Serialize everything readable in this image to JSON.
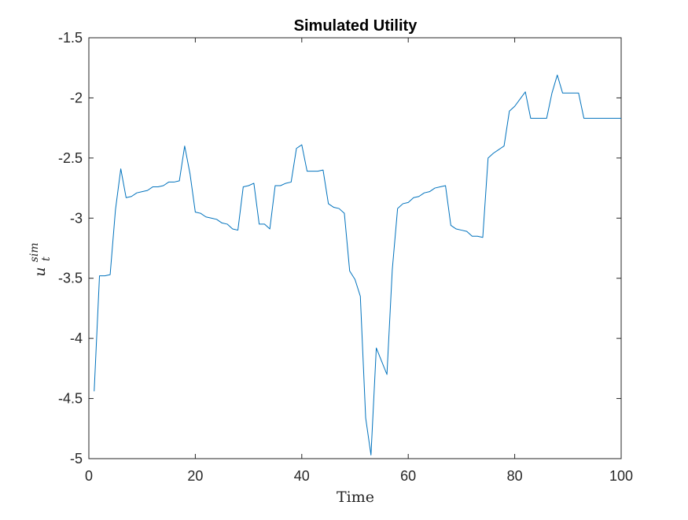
{
  "chart_data": {
    "type": "line",
    "title": "Simulated Utility",
    "xlabel": "Time",
    "ylabel": {
      "base": "u",
      "superscript": "sim",
      "subscript": "t"
    },
    "xlim": [
      0,
      100
    ],
    "ylim": [
      -5,
      -1.5
    ],
    "xticks": [
      0,
      20,
      40,
      60,
      80,
      100
    ],
    "yticks": [
      -1.5,
      -2,
      -2.5,
      -3,
      -3.5,
      -4,
      -4.5,
      -5
    ],
    "xtick_labels": [
      "0",
      "20",
      "40",
      "60",
      "80",
      "100"
    ],
    "ytick_labels": [
      "-1.5",
      "-2",
      "-2.5",
      "-3",
      "-3.5",
      "-4",
      "-4.5",
      "-5"
    ],
    "grid": false,
    "line_color": "#0072BD",
    "x": [
      1,
      2,
      3,
      4,
      5,
      6,
      7,
      8,
      9,
      10,
      11,
      12,
      13,
      14,
      15,
      16,
      17,
      18,
      19,
      20,
      21,
      22,
      23,
      24,
      25,
      26,
      27,
      28,
      29,
      30,
      31,
      32,
      33,
      34,
      35,
      36,
      37,
      38,
      39,
      40,
      41,
      42,
      43,
      44,
      45,
      46,
      47,
      48,
      49,
      50,
      51,
      52,
      53,
      54,
      55,
      56,
      57,
      58,
      59,
      60,
      61,
      62,
      63,
      64,
      65,
      66,
      67,
      68,
      69,
      70,
      71,
      72,
      73,
      74,
      75,
      76,
      77,
      78,
      79,
      80,
      81,
      82,
      83,
      84,
      85,
      86,
      87,
      88,
      89,
      90,
      91,
      92,
      93,
      94,
      95,
      96,
      97,
      98,
      99,
      100
    ],
    "y": [
      -4.44,
      -3.48,
      -3.48,
      -3.47,
      -2.93,
      -2.59,
      -2.83,
      -2.82,
      -2.79,
      -2.78,
      -2.77,
      -2.74,
      -2.74,
      -2.73,
      -2.7,
      -2.7,
      -2.69,
      -2.4,
      -2.63,
      -2.95,
      -2.96,
      -2.99,
      -3.0,
      -3.01,
      -3.04,
      -3.05,
      -3.09,
      -3.1,
      -2.74,
      -2.73,
      -2.71,
      -3.05,
      -3.05,
      -3.09,
      -2.73,
      -2.73,
      -2.71,
      -2.7,
      -2.42,
      -2.39,
      -2.61,
      -2.61,
      -2.61,
      -2.6,
      -2.88,
      -2.91,
      -2.92,
      -2.96,
      -3.44,
      -3.51,
      -3.65,
      -4.66,
      -4.97,
      -4.08,
      -4.19,
      -4.3,
      -3.43,
      -2.92,
      -2.88,
      -2.87,
      -2.83,
      -2.82,
      -2.79,
      -2.78,
      -2.75,
      -2.74,
      -2.73,
      -3.06,
      -3.09,
      -3.1,
      -3.11,
      -3.15,
      -3.15,
      -3.16,
      -2.5,
      -2.46,
      -2.43,
      -2.4,
      -2.11,
      -2.07,
      -2.01,
      -1.95,
      -2.17,
      -2.17,
      -2.17,
      -2.17,
      -1.96,
      -1.81,
      -1.96,
      -1.96,
      -1.96,
      -1.96,
      -2.17,
      -2.17,
      -2.17,
      -2.17,
      -2.17,
      -2.17,
      -2.17,
      -2.17
    ]
  }
}
